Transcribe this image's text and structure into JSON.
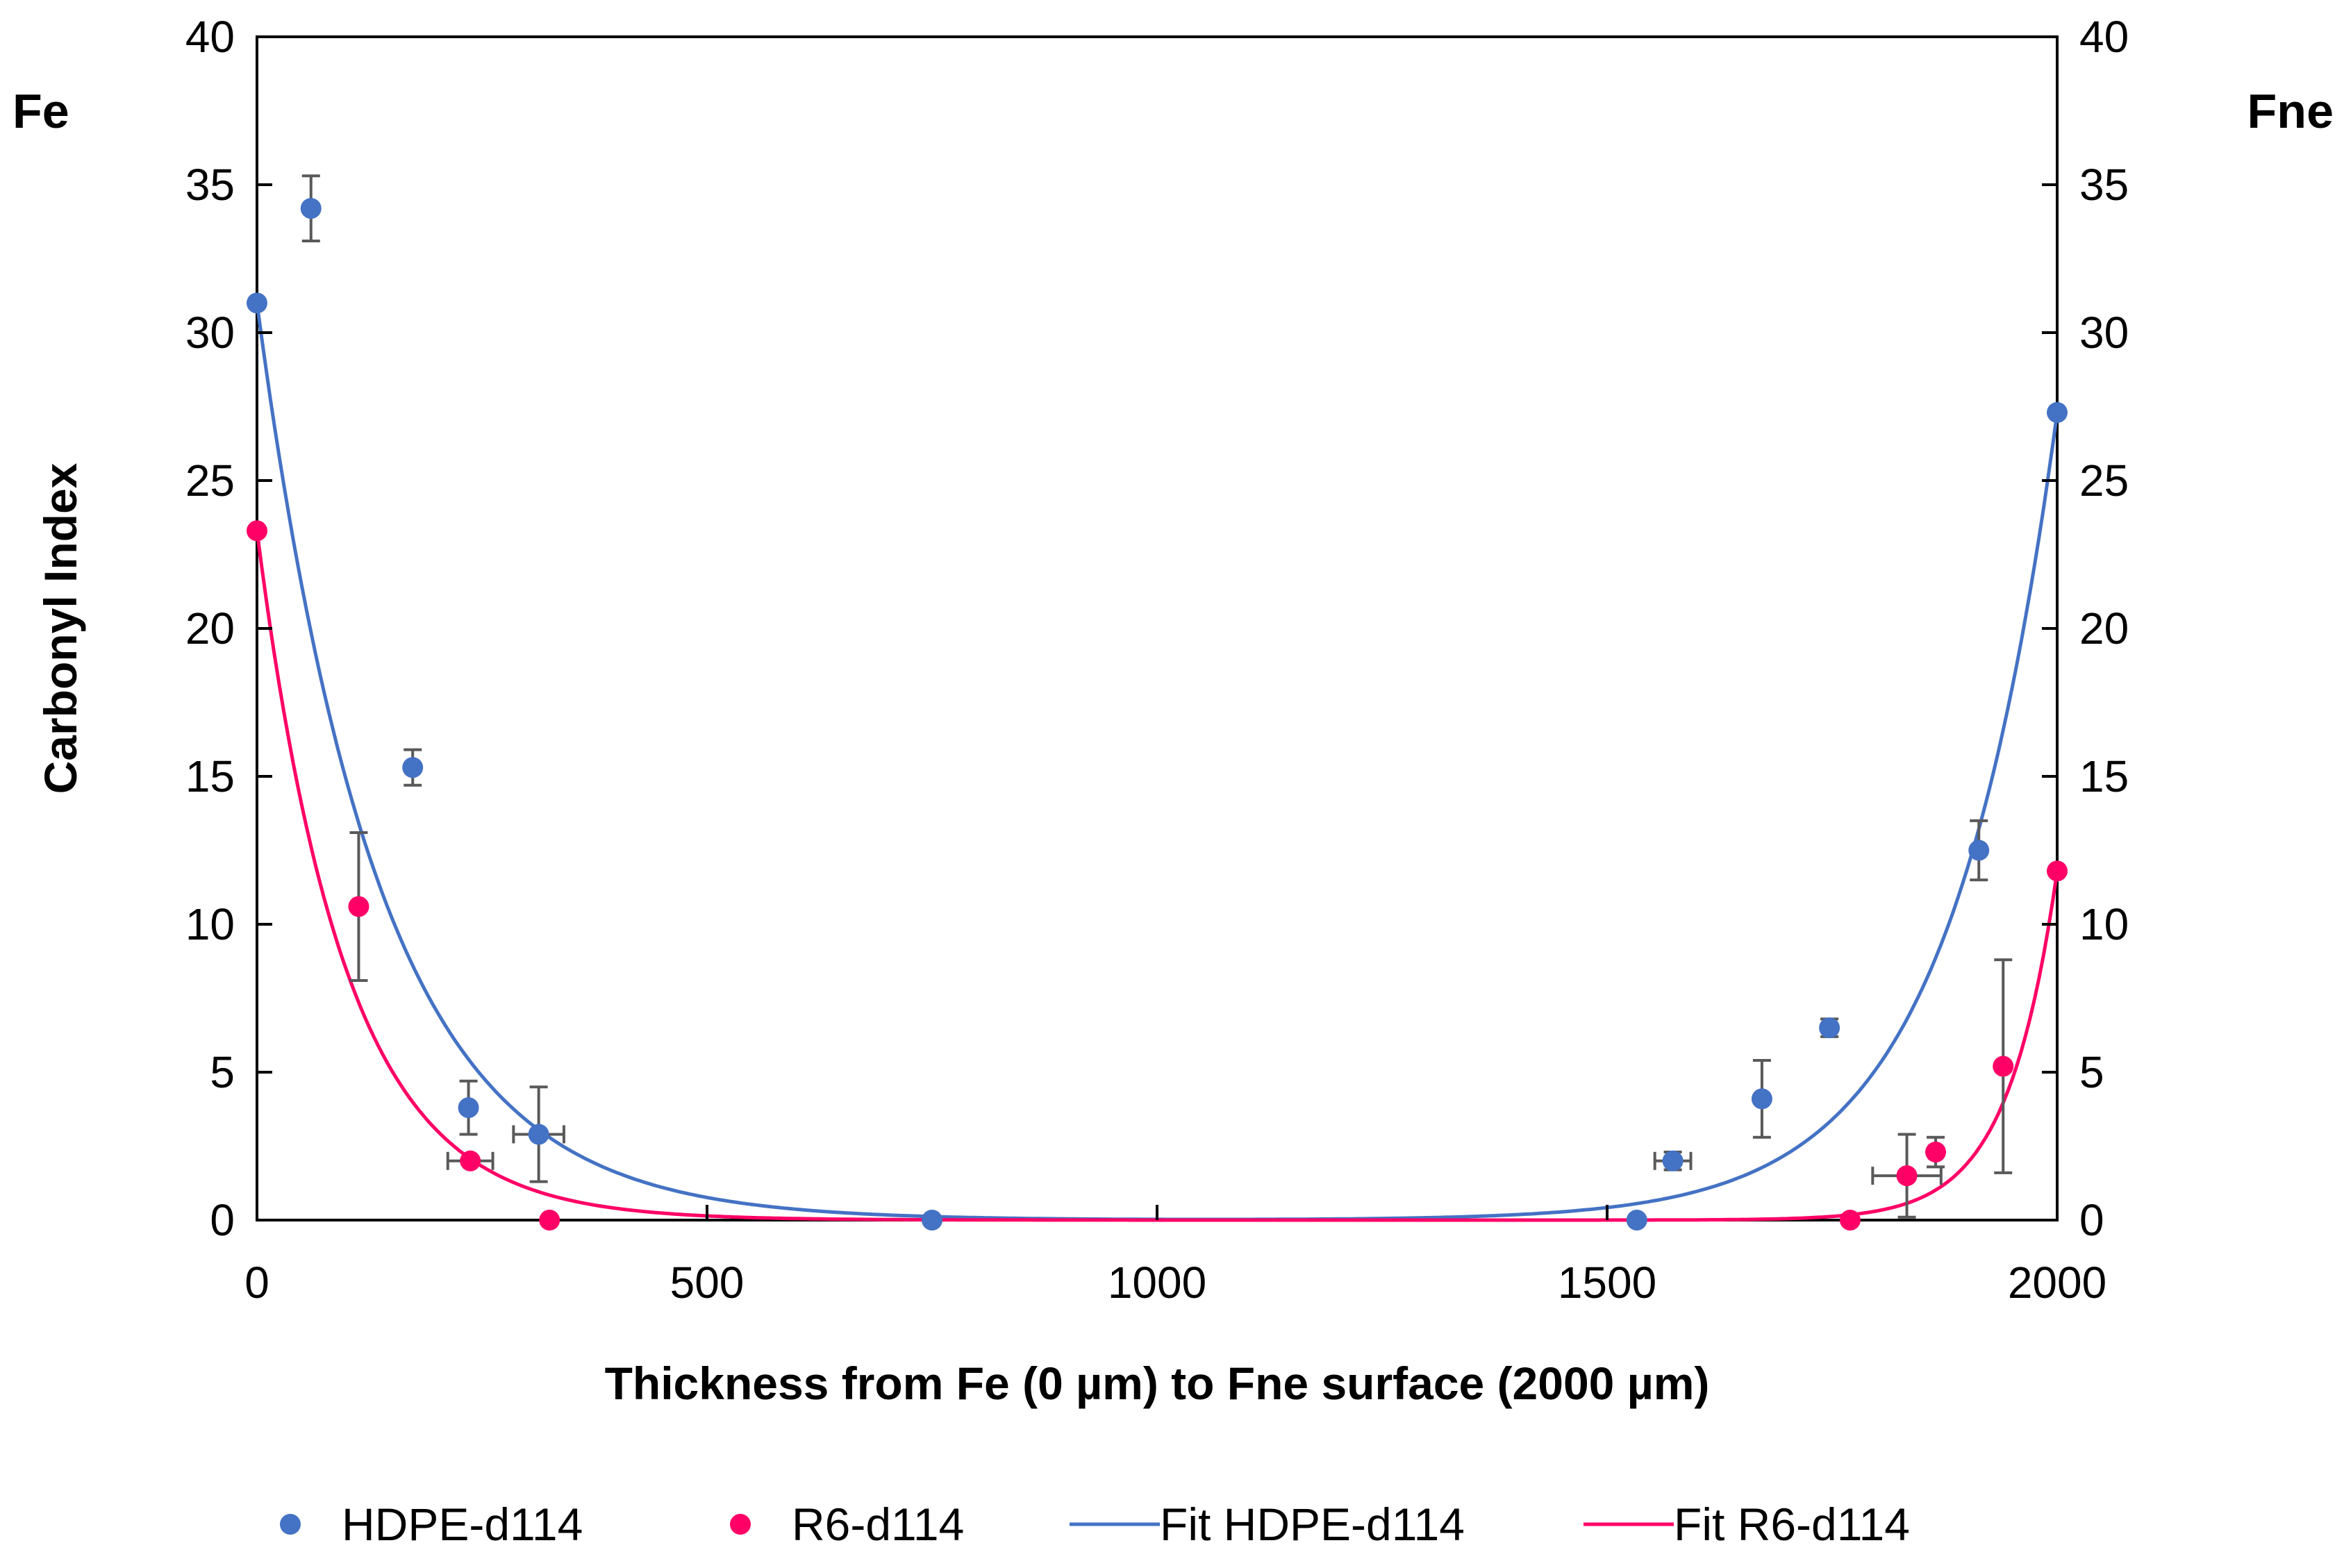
{
  "chart_data": {
    "type": "scatter",
    "xlabel": "Thickness from Fe (0 µm) to Fne surface (2000 µm)",
    "ylabel": "Carbonyl Index",
    "left_side_label": "Fe",
    "right_side_label": "Fne",
    "xlim": [
      0,
      2000
    ],
    "ylim": [
      0,
      40
    ],
    "x_ticks": [
      0,
      500,
      1000,
      1500,
      2000
    ],
    "x_tick_labels": [
      "0",
      "500",
      "1000",
      "1500",
      "2000"
    ],
    "y_ticks": [
      0,
      5,
      10,
      15,
      20,
      25,
      30,
      35,
      40
    ],
    "y_tick_labels": [
      "0",
      "5",
      "10",
      "15",
      "20",
      "25",
      "30",
      "35",
      "40"
    ],
    "grid": false,
    "legend_position": "bottom",
    "series": [
      {
        "name": "HDPE-d114",
        "kind": "points",
        "color": "#4472C4",
        "x": [
          0,
          60,
          173,
          235,
          313,
          750,
          1533,
          1573,
          1672,
          1747,
          1913,
          2000
        ],
        "y": [
          31.0,
          34.2,
          15.3,
          3.8,
          2.9,
          0.0,
          0.0,
          2.0,
          4.1,
          6.5,
          12.5,
          27.3
        ],
        "y_err": [
          0,
          1.1,
          0.6,
          0.9,
          1.6,
          0,
          0,
          0.3,
          1.3,
          0.3,
          1.0,
          0
        ],
        "x_err": [
          0,
          0,
          0,
          0,
          28,
          0,
          0,
          20,
          0,
          0,
          0,
          0
        ]
      },
      {
        "name": "R6-d114",
        "kind": "points",
        "color": "#FF0066",
        "x": [
          0,
          113,
          237,
          325,
          1770,
          1833,
          1865,
          1940,
          2000
        ],
        "y": [
          23.3,
          10.6,
          2.0,
          0.0,
          0.0,
          1.5,
          2.3,
          5.2,
          11.8
        ],
        "y_err": [
          0,
          2.5,
          0,
          0,
          0,
          1.4,
          0.5,
          3.6,
          0
        ],
        "x_err": [
          0,
          0,
          25,
          0,
          0,
          38,
          0,
          0,
          0
        ]
      },
      {
        "name": "Fit HDPE-d114",
        "kind": "fit",
        "color": "#4472C4",
        "model": "a*exp(-x/d1) + b*exp((x-2000)/d2)",
        "params": {
          "a": 31.0,
          "d1": 135,
          "b": 27.3,
          "d2": 120
        }
      },
      {
        "name": "Fit R6-d114",
        "kind": "fit",
        "color": "#FF0066",
        "model": "a*exp(-x/d1) + b*exp((x-2000)/d2)",
        "params": {
          "a": 23.3,
          "d1": 98,
          "b": 11.8,
          "d2": 55
        }
      }
    ]
  }
}
